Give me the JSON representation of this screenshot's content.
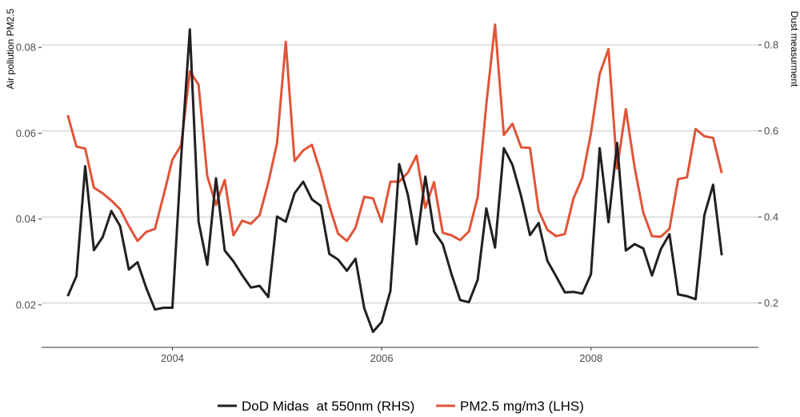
{
  "chart_data": {
    "type": "line",
    "title": "",
    "xlabel": "",
    "ylabel_left": "Air pollution PM2.5",
    "ylabel_right": "Dust measurment",
    "xlim": [
      2002.75,
      2009.6
    ],
    "ylim_left": [
      0.0101,
      0.0888
    ],
    "ylim_right": [
      0.097,
      0.882
    ],
    "x_ticks": [
      2004,
      2006,
      2008
    ],
    "x_tick_labels": [
      "2004",
      "2006",
      "2008"
    ],
    "y_left_ticks": [
      0.02,
      0.04,
      0.06,
      0.08
    ],
    "y_left_tick_labels": [
      "0.02",
      "0.04",
      "0.06",
      "0.08"
    ],
    "y_right_ticks": [
      0.2,
      0.4,
      0.6,
      0.8
    ],
    "y_right_tick_labels": [
      "0.2",
      "0.4",
      "0.6",
      "0.8"
    ],
    "grid": "horizontal gridlines at right-axis ticks",
    "legend_position": "bottom",
    "series": [
      {
        "name": "DoD Midas  at 550nm (RHS)",
        "axis": "right",
        "color": "#231f20",
        "x": [
          2003.0,
          2003.083,
          2003.167,
          2003.25,
          2003.333,
          2003.417,
          2003.5,
          2003.583,
          2003.667,
          2003.75,
          2003.833,
          2003.917,
          2004.0,
          2004.083,
          2004.167,
          2004.25,
          2004.333,
          2004.417,
          2004.5,
          2004.583,
          2004.667,
          2004.75,
          2004.833,
          2004.917,
          2005.0,
          2005.083,
          2005.167,
          2005.25,
          2005.333,
          2005.417,
          2005.5,
          2005.583,
          2005.667,
          2005.75,
          2005.833,
          2005.917,
          2006.0,
          2006.083,
          2006.167,
          2006.25,
          2006.333,
          2006.417,
          2006.5,
          2006.583,
          2006.667,
          2006.75,
          2006.833,
          2006.917,
          2007.0,
          2007.083,
          2007.167,
          2007.25,
          2007.333,
          2007.417,
          2007.5,
          2007.583,
          2007.667,
          2007.75,
          2007.833,
          2007.917,
          2008.0,
          2008.083,
          2008.167,
          2008.25,
          2008.333,
          2008.417,
          2008.5,
          2008.583,
          2008.667,
          2008.75,
          2008.833,
          2008.917,
          2009.0,
          2009.083,
          2009.167
        ],
        "values": [
          0.216,
          0.263,
          0.518,
          0.323,
          0.353,
          0.414,
          0.379,
          0.278,
          0.295,
          0.235,
          0.185,
          0.189,
          0.189,
          0.537,
          0.836,
          0.389,
          0.289,
          0.49,
          0.322,
          0.297,
          0.265,
          0.236,
          0.24,
          0.214,
          0.401,
          0.389,
          0.455,
          0.482,
          0.441,
          0.426,
          0.314,
          0.301,
          0.275,
          0.303,
          0.188,
          0.133,
          0.156,
          0.228,
          0.523,
          0.452,
          0.337,
          0.494,
          0.366,
          0.337,
          0.267,
          0.207,
          0.202,
          0.254,
          0.42,
          0.329,
          0.56,
          0.521,
          0.448,
          0.358,
          0.386,
          0.298,
          0.262,
          0.225,
          0.226,
          0.222,
          0.267,
          0.56,
          0.388,
          0.572,
          0.322,
          0.337,
          0.327,
          0.264,
          0.325,
          0.36,
          0.22,
          0.216,
          0.209,
          0.404,
          0.475
        ],
        "x_last": 2009.25,
        "value_last": 0.311
      },
      {
        "name": "PM2.5 mg/m3 (LHS)",
        "axis": "left",
        "color": "#e05438",
        "x": [
          2003.0,
          2003.083,
          2003.167,
          2003.25,
          2003.333,
          2003.417,
          2003.5,
          2003.583,
          2003.667,
          2003.75,
          2003.833,
          2003.917,
          2004.0,
          2004.083,
          2004.167,
          2004.25,
          2004.333,
          2004.417,
          2004.5,
          2004.583,
          2004.667,
          2004.75,
          2004.833,
          2004.917,
          2005.0,
          2005.083,
          2005.167,
          2005.25,
          2005.333,
          2005.417,
          2005.5,
          2005.583,
          2005.667,
          2005.75,
          2005.833,
          2005.917,
          2006.0,
          2006.083,
          2006.167,
          2006.25,
          2006.333,
          2006.417,
          2006.5,
          2006.583,
          2006.667,
          2006.75,
          2006.833,
          2006.917,
          2007.0,
          2007.083,
          2007.167,
          2007.25,
          2007.333,
          2007.417,
          2007.5,
          2007.583,
          2007.667,
          2007.75,
          2007.833,
          2007.917,
          2008.0,
          2008.083,
          2008.167,
          2008.25,
          2008.333,
          2008.417,
          2008.5,
          2008.583,
          2008.667,
          2008.75,
          2008.833,
          2008.917,
          2009.0,
          2009.083,
          2009.167
        ],
        "values": [
          0.0642,
          0.0569,
          0.0564,
          0.0473,
          0.046,
          0.0443,
          0.0423,
          0.0384,
          0.0349,
          0.037,
          0.0377,
          0.0456,
          0.0538,
          0.0572,
          0.0744,
          0.0713,
          0.05,
          0.0433,
          0.0491,
          0.0362,
          0.0396,
          0.0389,
          0.0409,
          0.0485,
          0.0577,
          0.0813,
          0.0535,
          0.056,
          0.0573,
          0.0508,
          0.043,
          0.0366,
          0.0349,
          0.038,
          0.0452,
          0.0448,
          0.0393,
          0.0487,
          0.0487,
          0.0508,
          0.0548,
          0.0426,
          0.0486,
          0.0368,
          0.0362,
          0.0351,
          0.0371,
          0.0451,
          0.0667,
          0.0853,
          0.0596,
          0.0622,
          0.0567,
          0.0566,
          0.042,
          0.0375,
          0.036,
          0.0365,
          0.0448,
          0.0496,
          0.06,
          0.0738,
          0.0796,
          0.0518,
          0.0656,
          0.052,
          0.0415,
          0.036,
          0.0359,
          0.0377,
          0.0493,
          0.0497,
          0.061,
          0.0593,
          0.0589
        ],
        "x_last": 2009.25,
        "value_last": 0.0507
      }
    ]
  }
}
